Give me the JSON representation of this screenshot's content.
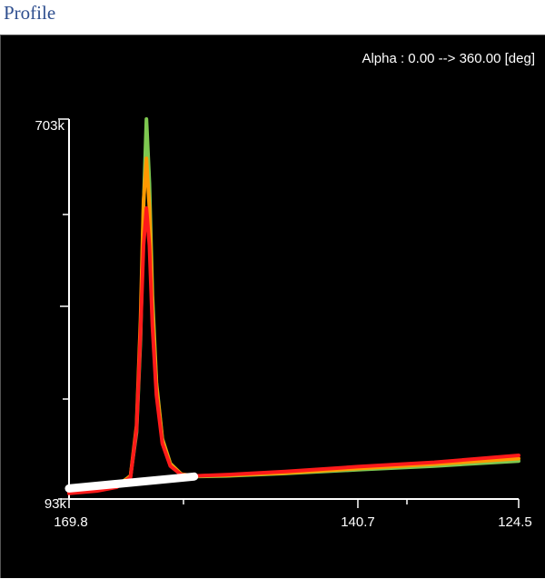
{
  "caption": "Profile",
  "chart_data": {
    "type": "line",
    "annotation": "Alpha : 0.00 --> 360.00 [deg]",
    "y_axis": {
      "min": 93000,
      "max": 703000,
      "top_label": "703k",
      "bottom_label": "93k"
    },
    "x_axis": {
      "start": 169.8,
      "end": 124.5,
      "reversed": true,
      "tick_labels": [
        "169.8",
        "140.7",
        "124.5"
      ],
      "tick_values": [
        169.8,
        140.7,
        124.5
      ]
    },
    "colors": {
      "background": "#000000",
      "axis": "#ffffff"
    },
    "series": [
      {
        "color": "#7ec850",
        "points": [
          [
            169.8,
            106000
          ],
          [
            167.0,
            109000
          ],
          [
            165.0,
            114000
          ],
          [
            163.6,
            130000
          ],
          [
            163.0,
            200000
          ],
          [
            162.6,
            350000
          ],
          [
            162.3,
            560000
          ],
          [
            162.0,
            703000
          ],
          [
            161.7,
            600000
          ],
          [
            161.4,
            420000
          ],
          [
            161.0,
            280000
          ],
          [
            160.4,
            190000
          ],
          [
            159.6,
            150000
          ],
          [
            158.5,
            133000
          ],
          [
            157.2,
            129000
          ],
          [
            154.0,
            130000
          ],
          [
            148.0,
            134000
          ],
          [
            140.7,
            140000
          ],
          [
            133.0,
            146000
          ],
          [
            124.5,
            154000
          ]
        ]
      },
      {
        "color": "#ff9900",
        "points": [
          [
            169.8,
            104000
          ],
          [
            167.0,
            108000
          ],
          [
            165.0,
            113000
          ],
          [
            163.6,
            130000
          ],
          [
            163.0,
            210000
          ],
          [
            162.6,
            380000
          ],
          [
            162.3,
            570000
          ],
          [
            162.0,
            640000
          ],
          [
            161.7,
            560000
          ],
          [
            161.4,
            400000
          ],
          [
            161.0,
            275000
          ],
          [
            160.4,
            188000
          ],
          [
            159.6,
            149000
          ],
          [
            158.5,
            133000
          ],
          [
            157.2,
            130000
          ],
          [
            154.0,
            131000
          ],
          [
            148.0,
            135000
          ],
          [
            140.7,
            142000
          ],
          [
            133.0,
            149000
          ],
          [
            124.5,
            158000
          ]
        ]
      },
      {
        "color": "#ff1a1a",
        "points": [
          [
            169.8,
            102000
          ],
          [
            167.0,
            106000
          ],
          [
            165.0,
            112000
          ],
          [
            163.6,
            128000
          ],
          [
            163.0,
            205000
          ],
          [
            162.6,
            360000
          ],
          [
            162.3,
            500000
          ],
          [
            162.0,
            560000
          ],
          [
            161.7,
            500000
          ],
          [
            161.4,
            370000
          ],
          [
            161.0,
            260000
          ],
          [
            160.4,
            182000
          ],
          [
            159.6,
            146000
          ],
          [
            158.5,
            132000
          ],
          [
            157.2,
            130000
          ],
          [
            154.0,
            132000
          ],
          [
            148.0,
            137000
          ],
          [
            140.7,
            145000
          ],
          [
            133.0,
            152000
          ],
          [
            124.5,
            163000
          ]
        ]
      },
      {
        "color": "#ffffff",
        "points": [
          [
            169.8,
            110000
          ],
          [
            157.2,
            129000
          ]
        ]
      }
    ]
  }
}
